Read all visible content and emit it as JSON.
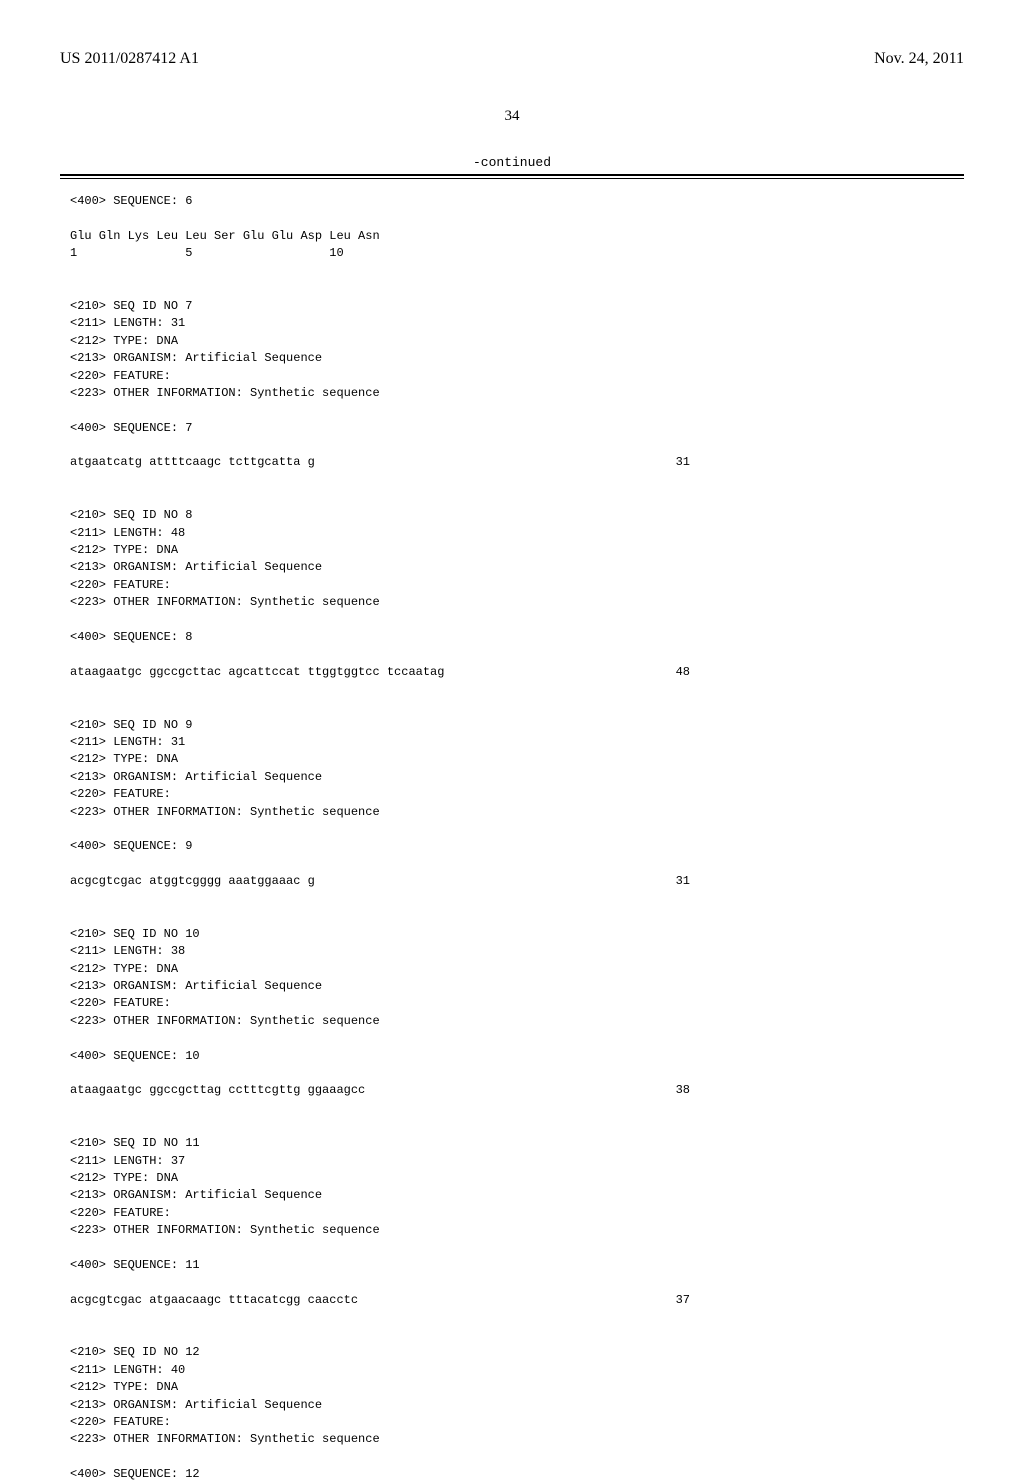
{
  "header": {
    "pub_number": "US 2011/0287412 A1",
    "pub_date": "Nov. 24, 2011"
  },
  "page_number": "34",
  "continued_label": "-continued",
  "entries": [
    {
      "lines": [
        "<400> SEQUENCE: 6",
        "",
        "Glu Gln Lys Leu Leu Ser Glu Glu Asp Leu Asn",
        "1               5                   10"
      ]
    },
    {
      "lines": [
        "<210> SEQ ID NO 7",
        "<211> LENGTH: 31",
        "<212> TYPE: DNA",
        "<213> ORGANISM: Artificial Sequence",
        "<220> FEATURE:",
        "<223> OTHER INFORMATION: Synthetic sequence",
        "",
        "<400> SEQUENCE: 7"
      ],
      "sequence": "atgaatcatg attttcaagc tcttgcatta g",
      "seq_length": "31"
    },
    {
      "lines": [
        "<210> SEQ ID NO 8",
        "<211> LENGTH: 48",
        "<212> TYPE: DNA",
        "<213> ORGANISM: Artificial Sequence",
        "<220> FEATURE:",
        "<223> OTHER INFORMATION: Synthetic sequence",
        "",
        "<400> SEQUENCE: 8"
      ],
      "sequence": "ataagaatgc ggccgcttac agcattccat ttggtggtcc tccaatag",
      "seq_length": "48"
    },
    {
      "lines": [
        "<210> SEQ ID NO 9",
        "<211> LENGTH: 31",
        "<212> TYPE: DNA",
        "<213> ORGANISM: Artificial Sequence",
        "<220> FEATURE:",
        "<223> OTHER INFORMATION: Synthetic sequence",
        "",
        "<400> SEQUENCE: 9"
      ],
      "sequence": "acgcgtcgac atggtcgggg aaatggaaac g",
      "seq_length": "31"
    },
    {
      "lines": [
        "<210> SEQ ID NO 10",
        "<211> LENGTH: 38",
        "<212> TYPE: DNA",
        "<213> ORGANISM: Artificial Sequence",
        "<220> FEATURE:",
        "<223> OTHER INFORMATION: Synthetic sequence",
        "",
        "<400> SEQUENCE: 10"
      ],
      "sequence": "ataagaatgc ggccgcttag cctttcgttg ggaaagcc",
      "seq_length": "38"
    },
    {
      "lines": [
        "<210> SEQ ID NO 11",
        "<211> LENGTH: 37",
        "<212> TYPE: DNA",
        "<213> ORGANISM: Artificial Sequence",
        "<220> FEATURE:",
        "<223> OTHER INFORMATION: Synthetic sequence",
        "",
        "<400> SEQUENCE: 11"
      ],
      "sequence": "acgcgtcgac atgaacaagc tttacatcgg caacctc",
      "seq_length": "37"
    },
    {
      "lines": [
        "<210> SEQ ID NO 12",
        "<211> LENGTH: 40",
        "<212> TYPE: DNA",
        "<213> ORGANISM: Artificial Sequence",
        "<220> FEATURE:",
        "<223> OTHER INFORMATION: Synthetic sequence",
        "",
        "<400> SEQUENCE: 12"
      ]
    }
  ]
}
